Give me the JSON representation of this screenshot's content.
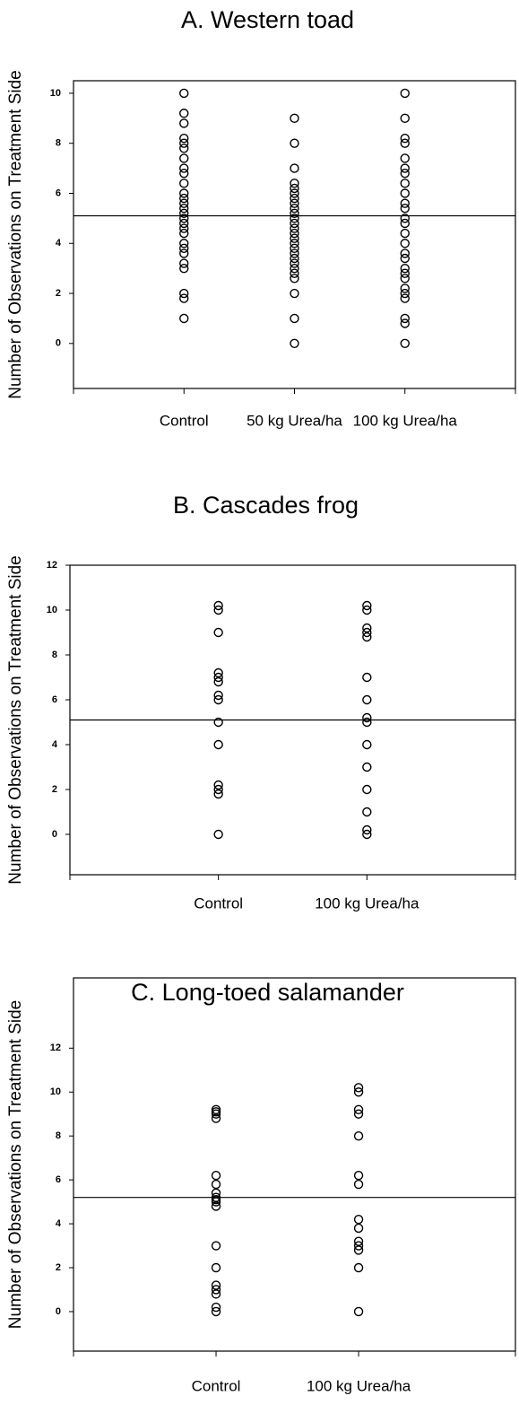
{
  "chart_data": [
    {
      "type": "strip",
      "title": "A. Western toad",
      "y_label": "Number of Observations on Treatment Side",
      "categories": [
        "Control",
        "50 kg Urea/ha",
        "100 kg Urea/ha"
      ],
      "values": [
        [
          10,
          9.2,
          8.8,
          8.2,
          8,
          7.8,
          7.4,
          7,
          6.8,
          6.4,
          6,
          5.8,
          5.6,
          5.4,
          5.2,
          5,
          4.8,
          4.6,
          4.4,
          4,
          3.8,
          3.6,
          3.2,
          3,
          2,
          1.8,
          1
        ],
        [
          9,
          8,
          7,
          6.4,
          6.2,
          6,
          5.8,
          5.6,
          5.4,
          5.2,
          5,
          4.8,
          4.6,
          4.4,
          4.2,
          4,
          3.8,
          3.6,
          3.4,
          3.2,
          3,
          2.8,
          2.6,
          2,
          1,
          0
        ],
        [
          10,
          9,
          8.2,
          8,
          7.4,
          7,
          6.8,
          6.4,
          6,
          5.6,
          5.4,
          5,
          4.8,
          4.4,
          4,
          3.6,
          3.4,
          3,
          2.8,
          2.6,
          2.2,
          2,
          1.8,
          1,
          0.8,
          0
        ]
      ],
      "reference_line": 5.1,
      "xlim": [
        0,
        4
      ],
      "ylim": [
        -1.8,
        10.5
      ],
      "yticks": [
        0,
        2,
        4,
        6,
        8,
        10
      ]
    },
    {
      "type": "strip",
      "title": "B. Cascades frog",
      "y_label": "Number of Observations on Treatment Side",
      "categories": [
        "Control",
        "100 kg Urea/ha"
      ],
      "values": [
        [
          10.2,
          10,
          9,
          7.2,
          7,
          6.8,
          6.2,
          6,
          5,
          4,
          2.2,
          2,
          1.8,
          0
        ],
        [
          10.2,
          10,
          9.2,
          9,
          8.8,
          7,
          6,
          5.2,
          5,
          4,
          3,
          2,
          1,
          0.2,
          0
        ]
      ],
      "reference_line": 5.1,
      "xlim": [
        0,
        3
      ],
      "ylim": [
        -1.8,
        12
      ],
      "yticks": [
        0,
        2,
        4,
        6,
        8,
        10,
        12
      ]
    },
    {
      "type": "strip",
      "title": "C. Long-toed salamander",
      "y_label": "Number of Observations on Treatment Side",
      "categories": [
        "Control",
        "100 kg Urea/ha"
      ],
      "values": [
        [
          9.2,
          9.1,
          9,
          8.8,
          6.2,
          5.8,
          5.4,
          5.2,
          5.1,
          5,
          4.8,
          3,
          2,
          1.2,
          1,
          0.8,
          0.2,
          0
        ],
        [
          10.2,
          10,
          9.2,
          9,
          8,
          6.2,
          5.8,
          4.2,
          3.8,
          3.2,
          3,
          2.8,
          2,
          0
        ]
      ],
      "reference_line": 5.2,
      "xlim": [
        0,
        3.1
      ],
      "ylim": [
        -1.8,
        15.2
      ],
      "yticks": [
        0,
        2,
        4,
        6,
        8,
        10,
        12
      ]
    }
  ]
}
